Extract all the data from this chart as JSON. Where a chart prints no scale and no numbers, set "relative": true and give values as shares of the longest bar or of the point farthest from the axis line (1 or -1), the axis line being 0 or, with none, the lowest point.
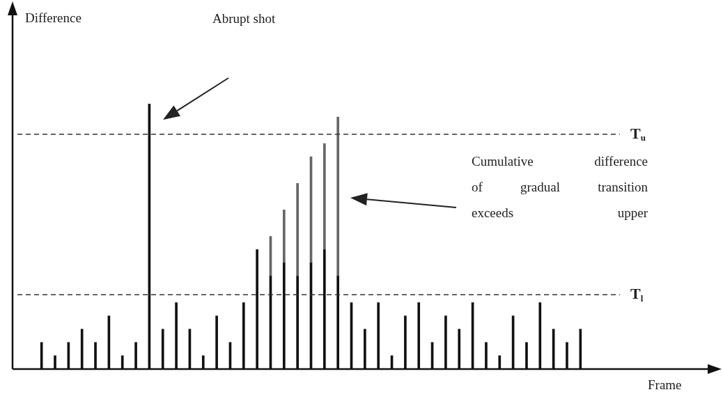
{
  "chart_data": {
    "type": "bar",
    "relative": true,
    "xlabel": "Frame",
    "categories": [
      null,
      null,
      null,
      null,
      null,
      null,
      null,
      null,
      null,
      null,
      null,
      null,
      null,
      null,
      null,
      null,
      null,
      null,
      null,
      null,
      null,
      null,
      null,
      null,
      null,
      null,
      null,
      null,
      null,
      null,
      null,
      null,
      null,
      null,
      null,
      null,
      null,
      null,
      null,
      null,
      null
    ],
    "series": [
      {
        "color": "#111111",
        "values": [
          0.1,
          0.05,
          0.1,
          0.15,
          0.1,
          0.2,
          0.05,
          0.1,
          1,
          0.15,
          0.25,
          0.15,
          0.05,
          0.2,
          0.1,
          0.25,
          0.45,
          0.35,
          0.4,
          0.35,
          0.4,
          0.45,
          0.35,
          0.25,
          0.15,
          0.25,
          0.05,
          0.2,
          0.25,
          0.1,
          0.2,
          0.15,
          0.25,
          0.1,
          0.05,
          0.2,
          0.1,
          0.25,
          0.15,
          0.1,
          0.15
        ]
      },
      {
        "color": "#666666",
        "values": [
          0,
          0,
          0,
          0,
          0,
          0,
          0,
          0,
          0,
          0,
          0,
          0,
          0,
          0,
          0,
          0,
          0,
          0.15,
          0.2,
          0.35,
          0.4,
          0.4,
          0.6,
          0,
          0,
          0,
          0,
          0,
          0,
          0,
          0,
          0,
          0,
          0,
          0,
          0,
          0,
          0,
          0,
          0,
          0
        ]
      }
    ],
    "stacked": true,
    "ref_lines": [
      {
        "axis": "y",
        "value": 0.885,
        "label": "T$_{u}$",
        "line_style": "dashed",
        "color": "#333333"
      },
      {
        "axis": "y",
        "value": 0.28,
        "label": "T$_{l}$",
        "line_style": "dashed",
        "color": "#333333"
      }
    ],
    "annotations": [
      "Abrupt shot",
      "Cumulative difference of gradual transition exceeds upper",
      "Difference"
    ]
  }
}
